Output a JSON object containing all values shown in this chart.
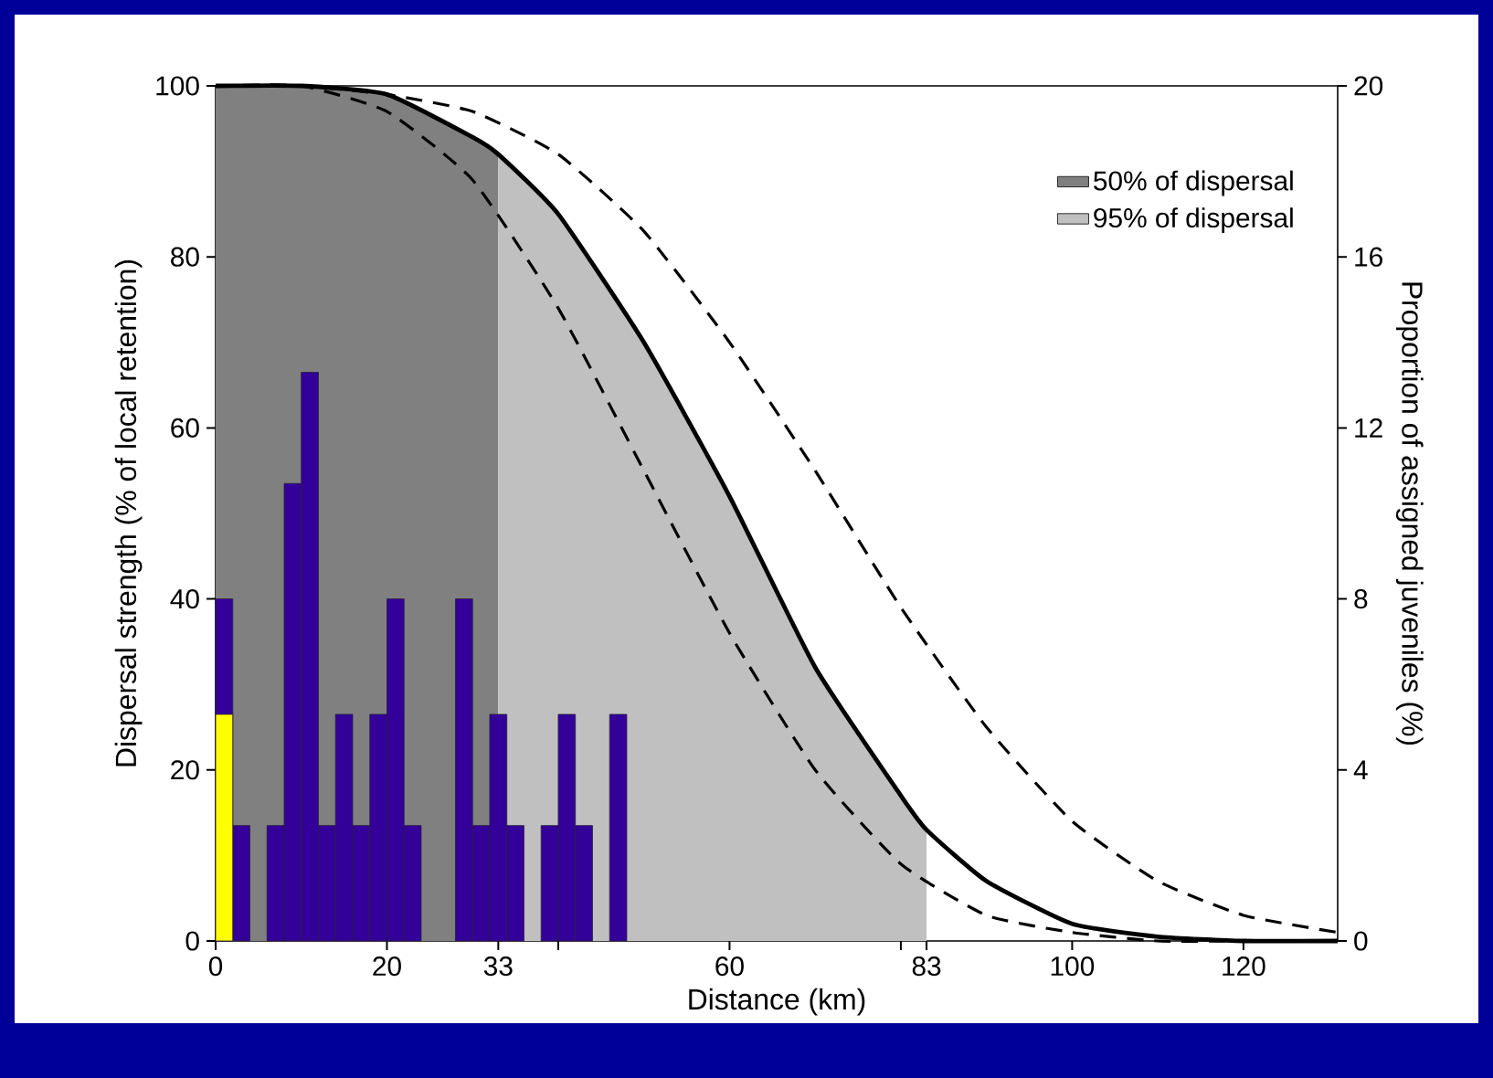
{
  "chart_data": {
    "type": "line",
    "xlabel": "Distance (km)",
    "ylabel": "Dispersal strength (% of local retention)",
    "y2label": "Proportion of assigned juveniles (%)",
    "xlim": [
      0,
      131
    ],
    "xticks": [
      0,
      20,
      33,
      {
        "value": 40,
        "label": null
      },
      60,
      {
        "value": 80,
        "label": null
      },
      83,
      100,
      120
    ],
    "ylim": [
      0,
      100
    ],
    "yticks": [
      0,
      20,
      40,
      60,
      80,
      100
    ],
    "y2lim": [
      0,
      20
    ],
    "y2ticks": [
      0,
      4,
      8,
      12,
      16,
      20
    ],
    "legend": "top right",
    "series": [
      {
        "name": "50% of dispersal",
        "type": "area",
        "color": "#808080",
        "x": [
          0,
          10,
          20,
          30,
          33
        ],
        "values": [
          100,
          100,
          99,
          94,
          92
        ]
      },
      {
        "name": "95% of dispersal",
        "type": "area",
        "color": "#c0c0c0",
        "x": [
          33,
          40,
          50,
          60,
          70,
          80,
          83
        ],
        "values": [
          92,
          85,
          70,
          52,
          32,
          17,
          13
        ]
      },
      {
        "color": "#000000",
        "line_style": "dashed",
        "x": [
          0,
          10,
          20,
          30,
          40,
          50,
          60,
          70,
          80,
          90,
          100,
          110,
          120
        ],
        "values": [
          100,
          100,
          97,
          89,
          74,
          55,
          36,
          20,
          9,
          3,
          1,
          0,
          0
        ]
      },
      {
        "color": "#000000",
        "line_style": "dashed",
        "x": [
          0,
          10,
          20,
          30,
          40,
          50,
          60,
          70,
          80,
          90,
          100,
          110,
          120,
          131
        ],
        "values": [
          100,
          100,
          99,
          97,
          92,
          83,
          70,
          55,
          39,
          25,
          14,
          7,
          3,
          1
        ]
      },
      {
        "color": "#000000",
        "line_style": "solid",
        "x": [
          0,
          10,
          20,
          30,
          33,
          40,
          50,
          60,
          70,
          80,
          83,
          90,
          100,
          110,
          120,
          131
        ],
        "values": [
          100,
          100,
          99,
          94,
          92,
          85,
          70,
          52,
          32,
          17,
          13,
          7,
          2,
          0.5,
          0,
          0
        ]
      },
      {
        "type": "histogram",
        "axis": "y2",
        "color": "#330099",
        "bins": [
          0,
          2,
          4,
          6,
          8,
          10,
          12,
          14,
          16,
          18,
          20,
          22,
          24,
          26,
          28,
          30,
          32,
          34,
          36,
          38,
          40,
          42,
          44,
          46,
          48
        ],
        "values": [
          8,
          2.7,
          0,
          2.7,
          10.7,
          13.3,
          2.7,
          5.3,
          2.7,
          5.3,
          8,
          2.7,
          0,
          0,
          8,
          2.7,
          5.3,
          2.7,
          0,
          2.7,
          5.3,
          2.7,
          0,
          5.3
        ]
      },
      {
        "type": "histogram",
        "axis": "y2",
        "color": "#ffff00",
        "bins": [
          0,
          2
        ],
        "values": [
          5.3
        ]
      }
    ]
  }
}
